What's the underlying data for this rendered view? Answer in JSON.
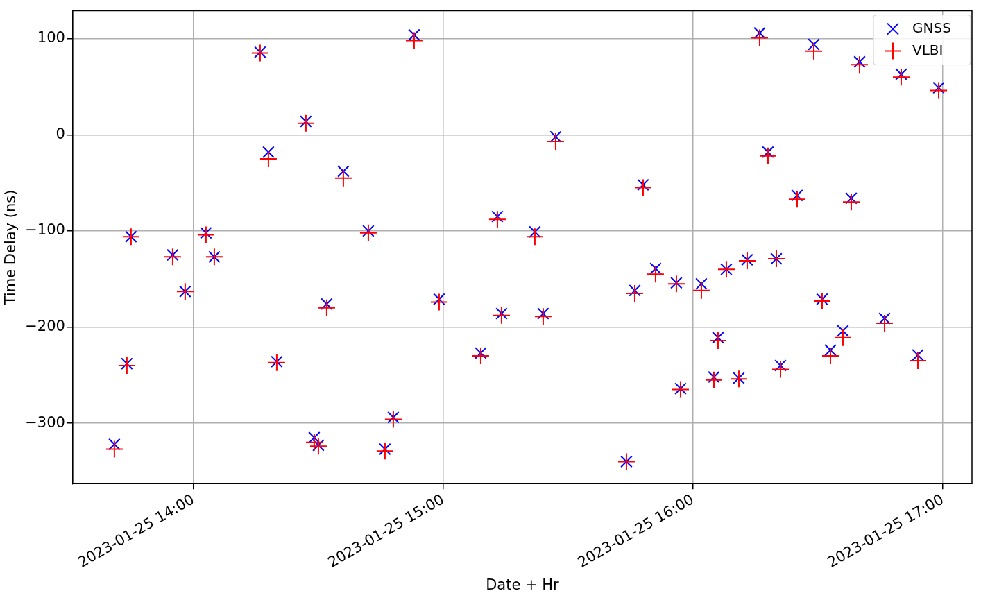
{
  "chart_data": {
    "type": "scatter",
    "xlabel": "Date + Hr",
    "ylabel": "Time Delay (ns)",
    "x": [
      "2023-01-25T13:41",
      "2023-01-25T13:44",
      "2023-01-25T13:45",
      "2023-01-25T13:55",
      "2023-01-25T13:58",
      "2023-01-25T14:03",
      "2023-01-25T14:05",
      "2023-01-25T14:16",
      "2023-01-25T14:18",
      "2023-01-25T14:20",
      "2023-01-25T14:27",
      "2023-01-25T14:29",
      "2023-01-25T14:30",
      "2023-01-25T14:32",
      "2023-01-25T14:36",
      "2023-01-25T14:42",
      "2023-01-25T14:46",
      "2023-01-25T14:48",
      "2023-01-25T14:53",
      "2023-01-25T14:59",
      "2023-01-25T15:09",
      "2023-01-25T15:13",
      "2023-01-25T15:14",
      "2023-01-25T15:22",
      "2023-01-25T15:24",
      "2023-01-25T15:27",
      "2023-01-25T15:44",
      "2023-01-25T15:46",
      "2023-01-25T15:48",
      "2023-01-25T15:51",
      "2023-01-25T15:56",
      "2023-01-25T15:57",
      "2023-01-25T16:02",
      "2023-01-25T16:05",
      "2023-01-25T16:06",
      "2023-01-25T16:08",
      "2023-01-25T16:11",
      "2023-01-25T16:13",
      "2023-01-25T16:16",
      "2023-01-25T16:18",
      "2023-01-25T16:20",
      "2023-01-25T16:21",
      "2023-01-25T16:25",
      "2023-01-25T16:29",
      "2023-01-25T16:31",
      "2023-01-25T16:33",
      "2023-01-25T16:36",
      "2023-01-25T16:38",
      "2023-01-25T16:40",
      "2023-01-25T16:46",
      "2023-01-25T16:50",
      "2023-01-25T16:54",
      "2023-01-25T16:59"
    ],
    "series": [
      {
        "name": "GNSS",
        "color": "#0000ff",
        "marker": "cross",
        "values": [
          -322,
          -238,
          -106,
          -125,
          -163,
          -102,
          -127,
          86,
          -18,
          -236,
          14,
          -315,
          -323,
          -176,
          -38,
          -100,
          -327,
          -294,
          104,
          -171,
          -227,
          -85,
          -186,
          -101,
          -186,
          -2,
          -340,
          -162,
          -52,
          -139,
          -154,
          -264,
          -155,
          -252,
          -211,
          -140,
          -253,
          -130,
          106,
          -18,
          -129,
          -240,
          -63,
          94,
          -171,
          -224,
          -204,
          -66,
          76,
          -191,
          63,
          -229,
          49
        ]
      },
      {
        "name": "VLBI",
        "color": "#ff0000",
        "marker": "plus",
        "values": [
          -327,
          -240,
          -106,
          -127,
          -163,
          -104,
          -127,
          85,
          -25,
          -237,
          12,
          -320,
          -324,
          -180,
          -45,
          -102,
          -329,
          -296,
          98,
          -174,
          -230,
          -88,
          -188,
          -106,
          -189,
          -7,
          -340,
          -165,
          -55,
          -145,
          -155,
          -265,
          -162,
          -255,
          -214,
          -140,
          -254,
          -131,
          101,
          -22,
          -129,
          -244,
          -67,
          87,
          -173,
          -230,
          -211,
          -70,
          73,
          -196,
          60,
          -235,
          46
        ]
      }
    ],
    "xlim": [
      "2023-01-25T13:31",
      "2023-01-25T17:07"
    ],
    "xticks": [
      {
        "value": "2023-01-25T14:00",
        "label": "2023-01-25 14:00"
      },
      {
        "value": "2023-01-25T15:00",
        "label": "2023-01-25 15:00"
      },
      {
        "value": "2023-01-25T16:00",
        "label": "2023-01-25 16:00"
      },
      {
        "value": "2023-01-25T17:00",
        "label": "2023-01-25 17:00"
      }
    ],
    "ylim": [
      -363,
      129
    ],
    "yticks": [
      -300,
      -200,
      -100,
      0,
      100
    ],
    "grid": true,
    "legend": "top right"
  }
}
